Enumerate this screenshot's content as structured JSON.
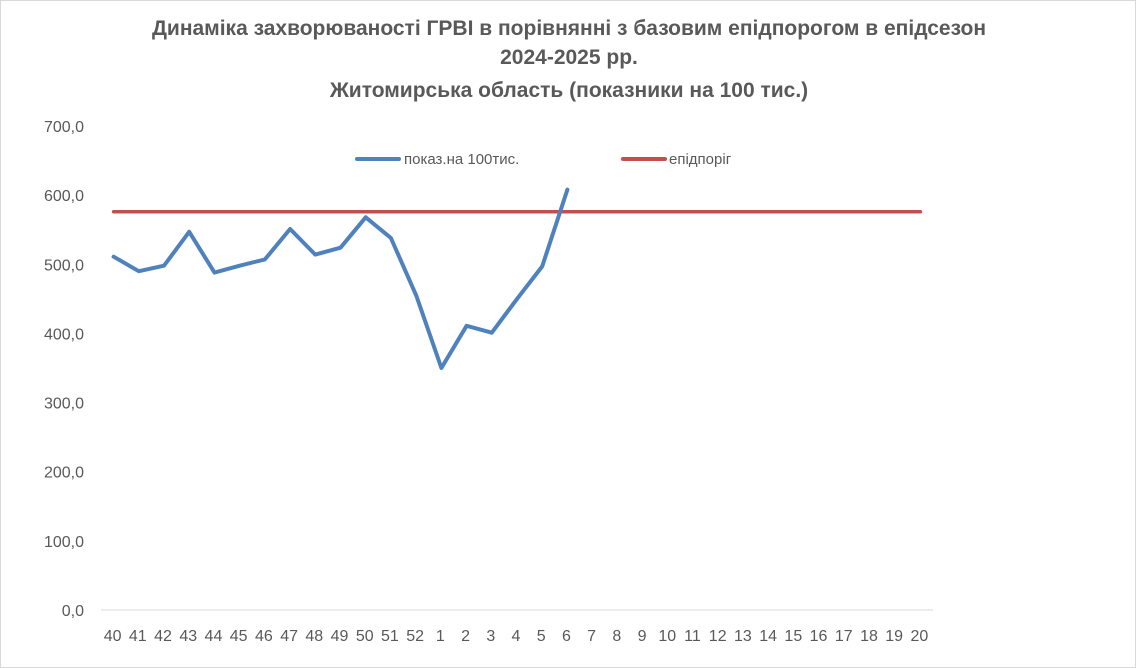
{
  "chart_data": {
    "type": "line",
    "title_lines": [
      "Динаміка захворюваності ГРВІ в порівнянні з базовим епідпорогом в епідсезон",
      "2024-2025 рр.",
      "Житомирська область (показники на 100 тис.)"
    ],
    "xlabel": "",
    "ylabel": "",
    "ylim": [
      0,
      700
    ],
    "yticks": [
      0,
      100,
      200,
      300,
      400,
      500,
      600,
      700
    ],
    "ytick_labels": [
      "0,0",
      "100,0",
      "200,0",
      "300,0",
      "400,0",
      "500,0",
      "600,0",
      "700,0"
    ],
    "grid": false,
    "legend_position": "top",
    "categories": [
      "40",
      "41",
      "42",
      "43",
      "44",
      "45",
      "46",
      "47",
      "48",
      "49",
      "50",
      "51",
      "52",
      "1",
      "2",
      "3",
      "4",
      "5",
      "6",
      "7",
      "8",
      "9",
      "10",
      "11",
      "12",
      "13",
      "14",
      "15",
      "16",
      "17",
      "18",
      "19",
      "20"
    ],
    "series": [
      {
        "name": "показ.на 100тис.",
        "color": "#4f81bd",
        "values": [
          511,
          490,
          498,
          547,
          488,
          498,
          507,
          551,
          514,
          524,
          568,
          538,
          455,
          350,
          411,
          401,
          450,
          497,
          608,
          null,
          null,
          null,
          null,
          null,
          null,
          null,
          null,
          null,
          null,
          null,
          null,
          null,
          null
        ]
      },
      {
        "name": "епідпоріг",
        "color": "#c0504d",
        "values": [
          576,
          576,
          576,
          576,
          576,
          576,
          576,
          576,
          576,
          576,
          576,
          576,
          576,
          576,
          576,
          576,
          576,
          576,
          576,
          576,
          576,
          576,
          576,
          576,
          576,
          576,
          576,
          576,
          576,
          576,
          576,
          576,
          576
        ]
      }
    ]
  },
  "colors": {
    "axis": "#d9d9d9",
    "text": "#595959",
    "title": "#595959"
  }
}
